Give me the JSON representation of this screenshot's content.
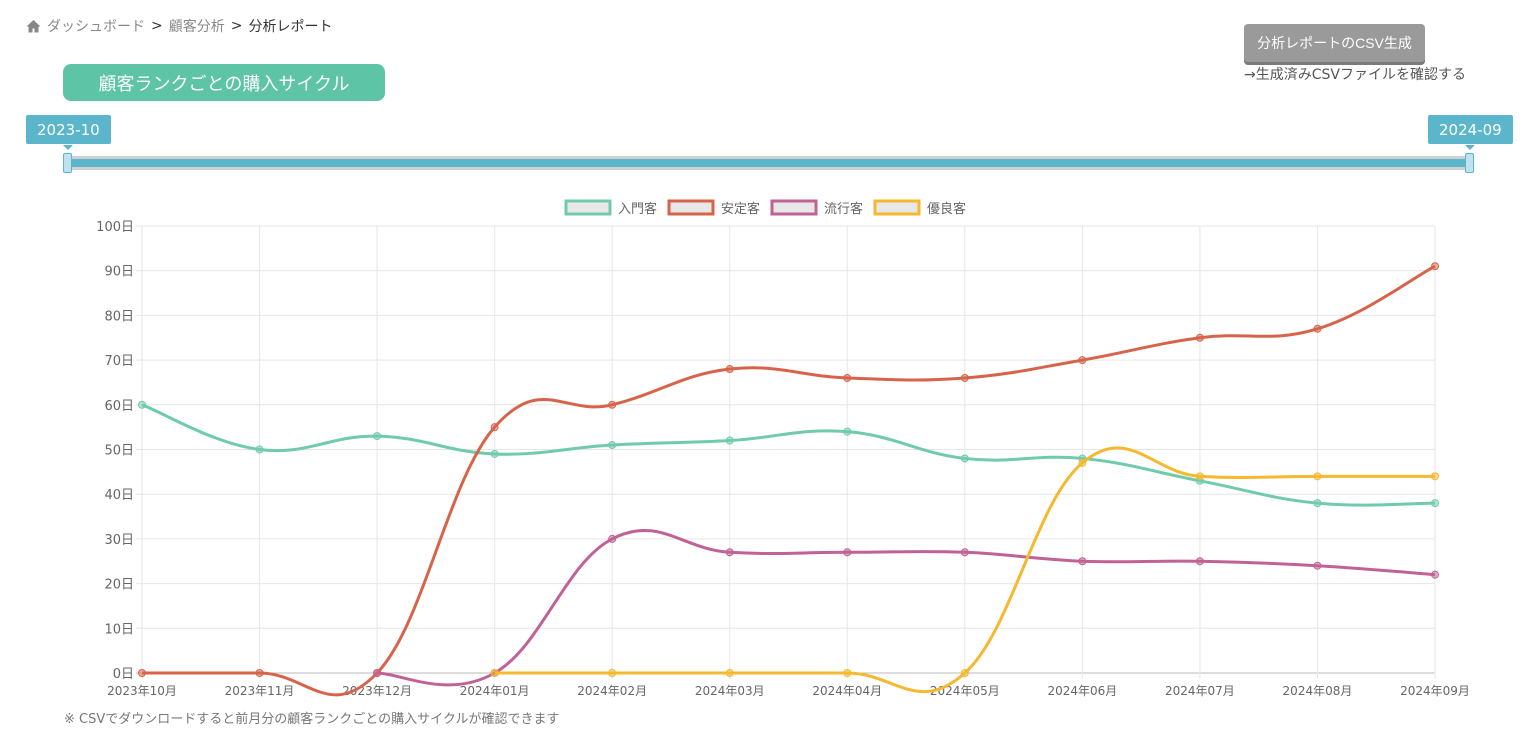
{
  "breadcrumb": {
    "items": [
      "ダッシュボード",
      "顧客分析",
      "分析レポート"
    ],
    "separator": ">"
  },
  "title": "顧客ランクごとの購入サイクル",
  "csv_button": "分析レポートのCSV生成",
  "csv_link": "→生成済みCSVファイルを確認する",
  "range": {
    "start": "2023-10",
    "end": "2024-09"
  },
  "note": "※ CSVでダウンロードすると前月分の顧客ランクごとの購入サイクルが確認できます",
  "chart_data": {
    "type": "line",
    "categories": [
      "2023年10月",
      "2023年11月",
      "2023年12月",
      "2024年01月",
      "2024年02月",
      "2024年03月",
      "2024年04月",
      "2024年05月",
      "2024年06月",
      "2024年07月",
      "2024年08月",
      "2024年09月"
    ],
    "ylim": [
      0,
      100
    ],
    "yticks": [
      0,
      10,
      20,
      30,
      40,
      50,
      60,
      70,
      80,
      90,
      100
    ],
    "ytick_suffix": "日",
    "legend_position": "top",
    "grid": true,
    "series": [
      {
        "name": "入門客",
        "color": "#6fcbab",
        "values": [
          60,
          50,
          53,
          49,
          51,
          52,
          54,
          48,
          48,
          43,
          38,
          38
        ]
      },
      {
        "name": "安定客",
        "color": "#d7644a",
        "values": [
          0,
          0,
          0,
          55,
          60,
          68,
          66,
          66,
          70,
          75,
          77,
          91
        ]
      },
      {
        "name": "流行客",
        "color": "#c06295",
        "values": [
          null,
          null,
          0,
          0,
          30,
          27,
          27,
          27,
          25,
          25,
          24,
          22
        ]
      },
      {
        "name": "優良客",
        "color": "#f5b82e",
        "values": [
          null,
          null,
          null,
          0,
          0,
          0,
          0,
          0,
          47,
          44,
          44,
          44
        ]
      }
    ]
  }
}
